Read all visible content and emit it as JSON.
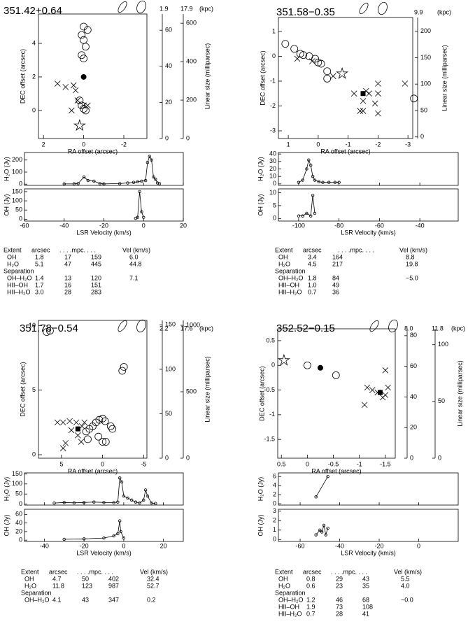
{
  "panels": [
    {
      "title": "351.42+0.64",
      "distances": [
        "1.9",
        "17.9"
      ],
      "kpc": "(kpc)",
      "size_label": "Linear size (milliparsec)",
      "map": {
        "type": "scatter",
        "xlabel": "RA offset (arcsec)",
        "ylabel": "DEC offset (arcsec)",
        "xlim": [
          2.25,
          -3.15
        ],
        "ylim": [
          -1.67,
          5.75
        ],
        "xticks": [
          2,
          0,
          -2
        ],
        "yticks": [
          0,
          2,
          4
        ],
        "series": [
          {
            "marker": "x",
            "x": [
              1.3,
              0.9,
              0.4,
              0.5,
              0.3,
              0.6,
              0.0,
              -0.2
            ],
            "values": [
              1.6,
              1.4,
              1.2,
              1.5,
              0.6,
              0.0,
              0.3,
              0.3
            ]
          },
          {
            "marker": "o",
            "x": [
              0,
              -0.2,
              0.1,
              0,
              -0.1,
              0.1,
              0,
              0.2,
              0.1,
              0,
              -0.1
            ],
            "values": [
              5,
              4.8,
              4.5,
              4.2,
              3.8,
              3.3,
              3.1,
              0.6,
              0.3,
              0.1,
              0.0
            ]
          },
          {
            "marker": "filled-o",
            "x": [
              0
            ],
            "values": [
              2
            ]
          },
          {
            "marker": "star",
            "x": [
              0.2
            ],
            "values": [
              -0.9
            ]
          }
        ],
        "size_axes": [
          {
            "ylim": [
              0,
              69
            ],
            "yticks": [
              0,
              20,
              40,
              60
            ]
          },
          {
            "ylim": [
              0,
              648
            ],
            "yticks": [
              0,
              200,
              400,
              600
            ]
          }
        ]
      },
      "h2o": {
        "type": "line",
        "ylabel": "H₂O (Jy)",
        "xlim": [
          -60,
          20
        ],
        "ylim": [
          -10,
          262
        ],
        "yticks": [
          0,
          100,
          200
        ],
        "x": [
          -40,
          -35,
          -33,
          -30,
          -28,
          -25,
          -22,
          -20,
          -12,
          -8,
          -5,
          -3,
          -1,
          1,
          2,
          3,
          4,
          5,
          6,
          7,
          8
        ],
        "values": [
          2,
          3,
          5,
          60,
          30,
          25,
          5,
          2,
          5,
          10,
          15,
          20,
          25,
          30,
          180,
          230,
          200,
          60,
          40,
          10,
          5
        ]
      },
      "oh": {
        "type": "line",
        "ylabel": "OH (Jy)",
        "xlabel": "LSR Velocity (km/s)",
        "xlim": [
          -60,
          20
        ],
        "xticks": [
          -60,
          -40,
          -20,
          0,
          20
        ],
        "ylim": [
          -10,
          165
        ],
        "yticks": [
          0,
          50,
          100,
          150
        ],
        "x": [
          -4,
          -3,
          -2,
          -1,
          0
        ],
        "values": [
          5,
          10,
          150,
          40,
          10
        ]
      },
      "table": {
        "header": [
          "Extent",
          "arcsec",
          ". . . .mpc. . . .",
          "Vel (km/s)"
        ],
        "rows": [
          [
            "OH",
            "1.8",
            "17",
            "159",
            "6.0"
          ],
          [
            "H₂O",
            "5.1",
            "47",
            "445",
            "44.8"
          ],
          [
            "Separation"
          ],
          [
            "OH–H₂O",
            "1.4",
            "13",
            "120",
            "7.1"
          ],
          [
            "HII–OH",
            "1.7",
            "16",
            "151"
          ],
          [
            "HII–H₂O",
            "3.0",
            "28",
            "283"
          ]
        ]
      }
    },
    {
      "title": "351.58−0.35",
      "distances": [
        "9.9"
      ],
      "kpc": "(kpc)",
      "size_label": "Linear size (milliparsec)",
      "map": {
        "type": "scatter",
        "xlabel": "RA offset (arcsec)",
        "ylabel": "DEC offset (arcsec)",
        "xlim": [
          1.33,
          -3.16
        ],
        "ylim": [
          -3.31,
          1.56
        ],
        "xticks": [
          1,
          0,
          -1,
          -2,
          -3
        ],
        "yticks": [
          -3,
          -2,
          -1,
          0,
          1
        ],
        "series": [
          {
            "marker": "x",
            "x": [
              0.7,
              0.2,
              -0.5,
              -1.2,
              -1.6,
              -1.5,
              -1.4,
              -1.5,
              -1.9,
              -2,
              -2,
              -2.9,
              -1.7,
              -2.0
            ],
            "values": [
              -0.1,
              -0.2,
              -0.8,
              -1.5,
              -1.4,
              -1.8,
              -2.2,
              -2.2,
              -1.9,
              -2.3,
              -1.1,
              -1.1,
              -1.5,
              -1.5
            ]
          },
          {
            "marker": "o",
            "x": [
              1.1,
              0.8,
              0.6,
              0.5,
              0.3,
              0.1,
              0,
              -0.1,
              -0.3,
              -0.3,
              -3.2
            ],
            "values": [
              0.5,
              0.3,
              0.1,
              0.05,
              0,
              -0.1,
              -0.25,
              -0.3,
              -0.6,
              -0.9,
              -1.7
            ]
          },
          {
            "marker": "filled-square",
            "x": [
              -1.5
            ],
            "values": [
              -1.5
            ]
          },
          {
            "marker": "star",
            "x": [
              -0.8
            ],
            "values": [
              -0.7
            ]
          }
        ],
        "size_axes": [
          {
            "ylim": [
              -3,
              226
            ],
            "yticks": [
              0,
              50,
              100,
              150,
              200
            ]
          }
        ]
      },
      "h2o": {
        "type": "line",
        "ylabel": "H₂O (Jy)",
        "xlim": [
          -110,
          -21
        ],
        "ylim": [
          -2,
          42
        ],
        "yticks": [
          0,
          10,
          20,
          30,
          40
        ],
        "x": [
          -100,
          -98,
          -96,
          -95,
          -94,
          -93,
          -92,
          -90,
          -88,
          -85,
          -82,
          -80
        ],
        "values": [
          2,
          5,
          20,
          32,
          25,
          10,
          5,
          3,
          2,
          2,
          2,
          2
        ]
      },
      "oh": {
        "type": "line",
        "ylabel": "OH (Jy)",
        "xlabel": "LSR Velocity (km/s)",
        "xlim": [
          -110,
          -21
        ],
        "xticks": [
          -100,
          -80,
          -60,
          -40
        ],
        "ylim": [
          -1,
          11.5
        ],
        "yticks": [
          0,
          5,
          10
        ],
        "x": [
          -100,
          -98,
          -96,
          -94,
          -93,
          -92
        ],
        "values": [
          1,
          1,
          2,
          1,
          9,
          2
        ]
      },
      "table": {
        "header": [
          "Extent",
          "arcsec",
          ". . . .mpc. . . .",
          "Vel (km/s)"
        ],
        "rows": [
          [
            "OH",
            "3.4",
            "164",
            "8.8"
          ],
          [
            "H₂O",
            "4.5",
            "217",
            "19.8"
          ],
          [
            "Separation"
          ],
          [
            "OH–H₂O",
            "1.8",
            "84",
            "−5.0"
          ],
          [
            "HII–OH",
            "1.0",
            "49"
          ],
          [
            "HII–H₂O",
            "0.7",
            "36"
          ]
        ]
      }
    },
    {
      "title": "351.78−0.54",
      "distances": [
        "2.2",
        "17.6"
      ],
      "kpc": "(kpc)",
      "size_label": "Linear size (milliparsec)",
      "map": {
        "type": "scatter",
        "xlabel": "RA offset (arcsec)",
        "ylabel": "DEC offset (arcsec)",
        "xlim": [
          7.8,
          -5.4
        ],
        "ylim": [
          -0.27,
          10.4
        ],
        "xticks": [
          5,
          0,
          -5
        ],
        "yticks": [
          0,
          5,
          10
        ],
        "series": [
          {
            "marker": "x",
            "x": [
              4.8,
              4.5,
              3.8,
              3.0,
              2.6,
              2.5,
              3.2,
              2.2,
              4.0,
              4.8,
              5.5
            ],
            "values": [
              0.5,
              0.9,
              1.9,
              1.5,
              1.0,
              2.2,
              2.5,
              2.5,
              2.6,
              2.5,
              2.5
            ]
          },
          {
            "marker": "o",
            "x": [
              6.8,
              6.4,
              -2.6,
              -2.4,
              2.0,
              1.6,
              1.2,
              0.8,
              0.4,
              0,
              -0.3,
              -1.0,
              -1.2,
              0.5,
              0,
              -0.4,
              1.8
            ],
            "values": [
              9.5,
              9.6,
              6.8,
              6.5,
              1.8,
              2.0,
              2.2,
              2.5,
              2.7,
              2.8,
              2.6,
              2.2,
              2.0,
              1.4,
              1.0,
              1.0,
              1.2
            ]
          },
          {
            "marker": "filled-square",
            "x": [
              3.0
            ],
            "values": [
              2.0
            ]
          }
        ],
        "size_axes": [
          {
            "ylim": [
              0,
              155
            ],
            "yticks": [
              0,
              50,
              100,
              150
            ]
          },
          {
            "ylim": [
              0,
              1037
            ],
            "yticks": [
              0,
              500,
              1000
            ]
          }
        ]
      },
      "h2o": {
        "type": "line",
        "ylabel": "H₂O (Jy)",
        "xlim": [
          -50,
          30
        ],
        "ylim": [
          -5,
          155
        ],
        "yticks": [
          0,
          50,
          100,
          150
        ],
        "x": [
          -35,
          -30,
          -25,
          -20,
          -15,
          -10,
          -5,
          -3,
          -2,
          -1,
          0,
          2,
          4,
          6,
          8,
          10,
          11,
          12,
          14,
          16
        ],
        "values": [
          5,
          8,
          6,
          8,
          10,
          8,
          7,
          10,
          130,
          110,
          40,
          30,
          20,
          10,
          5,
          20,
          70,
          40,
          5,
          3
        ]
      },
      "oh": {
        "type": "line",
        "ylabel": "OH (Jy)",
        "xlabel": "LSR Velocity (km/s)",
        "xlim": [
          -50,
          30
        ],
        "xticks": [
          -40,
          -20,
          0,
          20
        ],
        "ylim": [
          -3,
          72
        ],
        "yticks": [
          0,
          20,
          40,
          60
        ],
        "x": [
          -30,
          -20,
          -10,
          -5,
          -3,
          -2,
          -1.5,
          0
        ],
        "values": [
          2,
          3,
          5,
          10,
          15,
          45,
          20,
          5
        ]
      },
      "table": {
        "header": [
          "Extent",
          "arcsec",
          ". . . .mpc. . . .",
          "Vel (km/s)"
        ],
        "rows": [
          [
            "OH",
            "4.7",
            "50",
            "402",
            "32.4"
          ],
          [
            "H₂O",
            "11.8",
            "123",
            "987",
            "52.7"
          ],
          [
            "Separation"
          ],
          [
            "OH–H₂O",
            "4.1",
            "43",
            "347",
            "0.2"
          ]
        ]
      }
    },
    {
      "title": "352.52−0.15",
      "distances": [
        "8.0",
        "11.8"
      ],
      "kpc": "(kpc)",
      "size_label": "Linear size (milliparsec)",
      "map": {
        "type": "scatter",
        "xlabel": "RA offset (arcsec)",
        "ylabel": "DEC offset (arcsec)",
        "xlim": [
          0.57,
          -1.69
        ],
        "ylim": [
          -1.88,
          0.74
        ],
        "xticks": [
          0.5,
          0,
          -0.5,
          -1,
          -1.5
        ],
        "yticks": [
          -1.5,
          -1,
          -0.5,
          0,
          0.5
        ],
        "series": [
          {
            "marker": "x",
            "x": [
              -1.1,
              -1.15,
              -1.25,
              -1.35,
              -1.45,
              -1.5,
              -1.55,
              -1.5
            ],
            "values": [
              -0.8,
              -0.45,
              -0.5,
              -0.55,
              -0.65,
              -0.6,
              -0.45,
              -0.1
            ]
          },
          {
            "marker": "o",
            "x": [
              0,
              -0.55
            ],
            "values": [
              0,
              -0.2
            ]
          },
          {
            "marker": "filled-o",
            "x": [
              -0.25
            ],
            "values": [
              -0.05
            ]
          },
          {
            "marker": "filled-square",
            "x": [
              -1.4
            ],
            "values": [
              -0.55
            ]
          },
          {
            "marker": "star",
            "x": [
              0.45
            ],
            "values": [
              0.1
            ]
          }
        ],
        "size_axes": [
          {
            "ylim": [
              0,
              84.5
            ],
            "yticks": [
              0,
              20,
              40,
              60,
              80
            ]
          },
          {
            "ylim": [
              0,
              114
            ],
            "yticks": [
              0,
              50,
              100
            ]
          }
        ]
      },
      "h2o": {
        "type": "line",
        "ylabel": "H₂O (Jy)",
        "xlim": [
          -71,
          20
        ],
        "ylim": [
          -0.3,
          6.8
        ],
        "yticks": [
          0,
          2,
          4,
          6
        ],
        "x": [
          -52,
          -46
        ],
        "values": [
          1.5,
          6
        ]
      },
      "oh": {
        "type": "line",
        "ylabel": "OH (Jy)",
        "xlabel": "LSR Velocity (km/s)",
        "xlim": [
          -71,
          20
        ],
        "xticks": [
          -60,
          -40,
          -20,
          0
        ],
        "ylim": [
          -0.2,
          3.2
        ],
        "yticks": [
          0,
          1,
          2,
          3
        ],
        "x": [
          -52,
          -50,
          -49,
          -48,
          -47,
          -46
        ],
        "values": [
          0.5,
          1,
          0.8,
          1.5,
          0.5,
          1.2
        ]
      },
      "table": {
        "header": [
          "Extent",
          "arcsec",
          ". . . .mpc. . . .",
          "Vel (km/s)"
        ],
        "rows": [
          [
            "OH",
            "0.8",
            "29",
            "43",
            "5.5"
          ],
          [
            "H₂O",
            "0.6",
            "23",
            "35",
            "4.0"
          ],
          [
            "Separation"
          ],
          [
            "OH–H₂O",
            "1.2",
            "46",
            "68",
            "−0.0"
          ],
          [
            "HII–OH",
            "1.9",
            "73",
            "108"
          ],
          [
            "HII–H₂O",
            "0.7",
            "28",
            "41"
          ]
        ]
      }
    }
  ]
}
